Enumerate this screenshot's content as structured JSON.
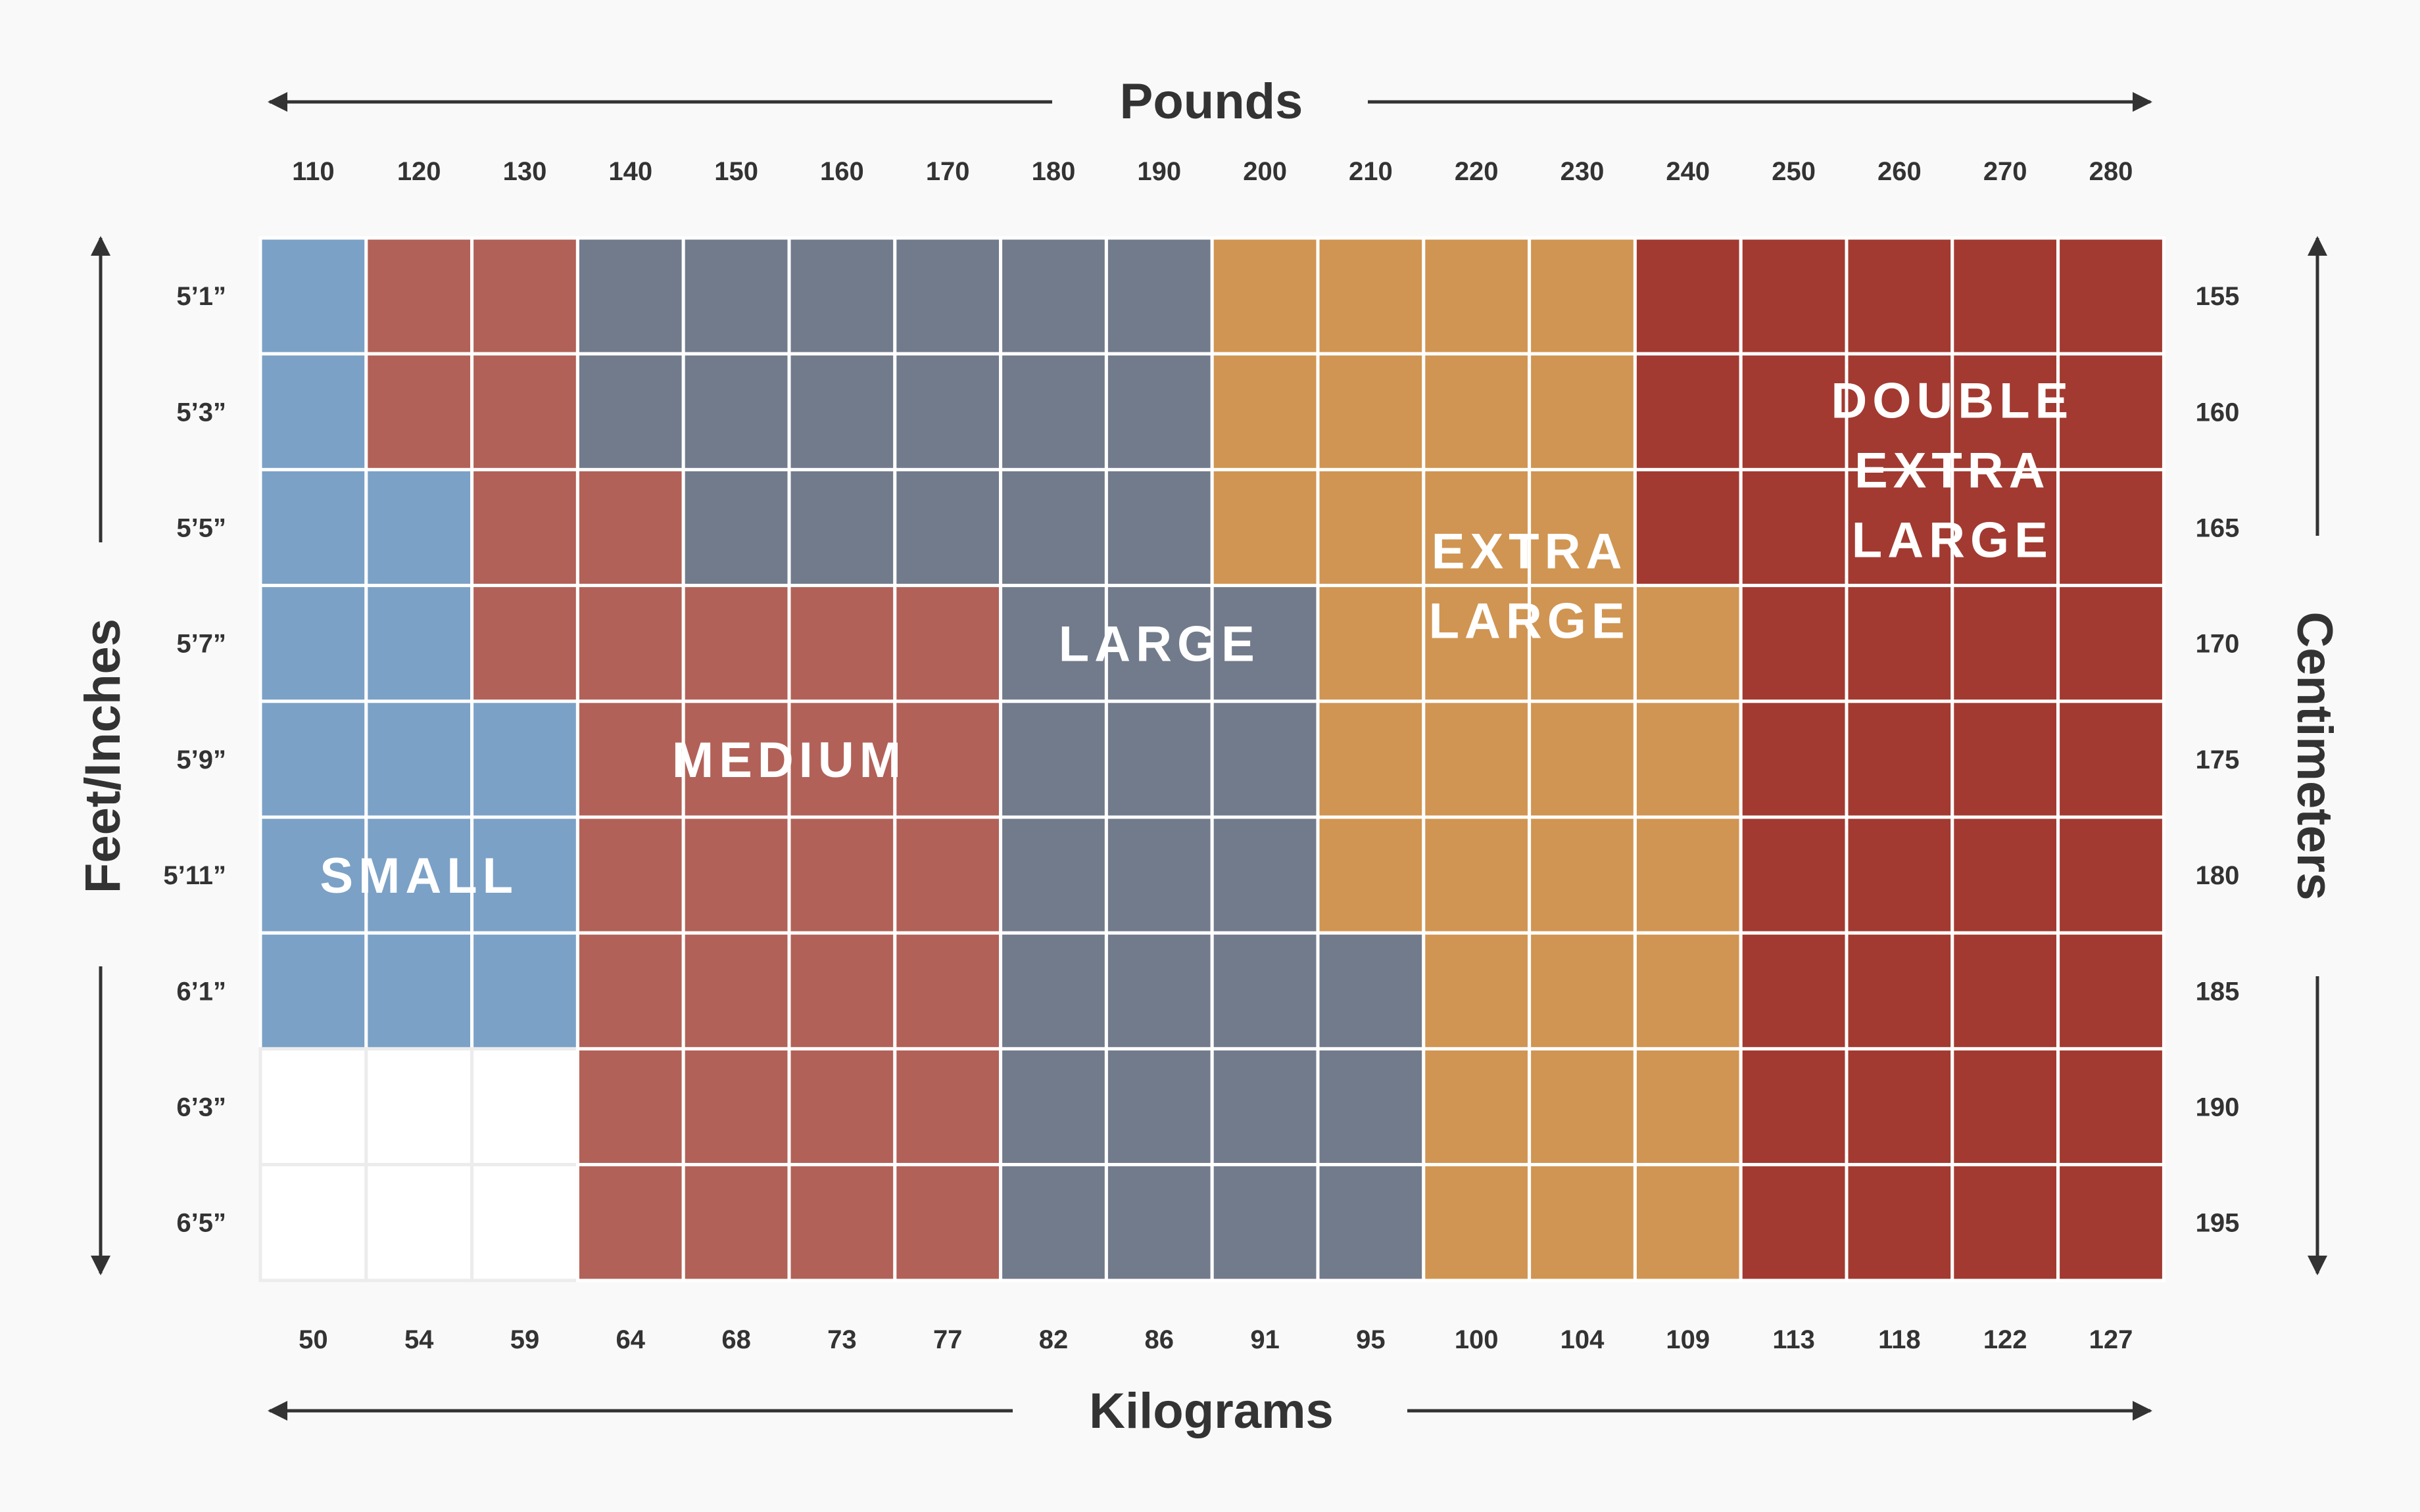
{
  "chart_data": {
    "type": "heatmap",
    "title": "",
    "x_top_label": "Pounds",
    "x_bottom_label": "Kilograms",
    "y_left_label": "Feet/Inches",
    "y_right_label": "Centimeters",
    "pounds": [
      "110",
      "120",
      "130",
      "140",
      "150",
      "160",
      "170",
      "180",
      "190",
      "200",
      "210",
      "220",
      "230",
      "240",
      "250",
      "260",
      "270",
      "280"
    ],
    "kilograms": [
      "50",
      "54",
      "59",
      "64",
      "68",
      "73",
      "77",
      "82",
      "86",
      "91",
      "95",
      "100",
      "104",
      "109",
      "113",
      "118",
      "122",
      "127"
    ],
    "heights_ft": [
      "5’1”",
      "5’3”",
      "5’5”",
      "5’7”",
      "5’9”",
      "5’11”",
      "6’1”",
      "6’3”",
      "6’5”"
    ],
    "heights_cm": [
      "155",
      "160",
      "165",
      "170",
      "175",
      "180",
      "185",
      "190",
      "195"
    ],
    "sizes": {
      "S": {
        "label": "SMALL",
        "color": "#7ba1c6"
      },
      "M": {
        "label": "MEDIUM",
        "color": "#b26158"
      },
      "L": {
        "label": "LARGE",
        "color": "#717b8b"
      },
      "XL": {
        "label": "EXTRA LARGE",
        "color": "#d09552"
      },
      "XXL": {
        "label": "DOUBLE EXTRA LARGE",
        "color": "#a23a31"
      },
      "N": {
        "label": "",
        "color": "#ffffff"
      }
    },
    "grid": [
      [
        "S",
        "M",
        "M",
        "L",
        "L",
        "L",
        "L",
        "L",
        "L",
        "XL",
        "XL",
        "XL",
        "XL",
        "XXL",
        "XXL",
        "XXL",
        "XXL",
        "XXL"
      ],
      [
        "S",
        "M",
        "M",
        "L",
        "L",
        "L",
        "L",
        "L",
        "L",
        "XL",
        "XL",
        "XL",
        "XL",
        "XXL",
        "XXL",
        "XXL",
        "XXL",
        "XXL"
      ],
      [
        "S",
        "S",
        "M",
        "M",
        "L",
        "L",
        "L",
        "L",
        "L",
        "XL",
        "XL",
        "XL",
        "XL",
        "XXL",
        "XXL",
        "XXL",
        "XXL",
        "XXL"
      ],
      [
        "S",
        "S",
        "M",
        "M",
        "M",
        "M",
        "M",
        "L",
        "L",
        "L",
        "XL",
        "XL",
        "XL",
        "XL",
        "XXL",
        "XXL",
        "XXL",
        "XXL"
      ],
      [
        "S",
        "S",
        "S",
        "M",
        "M",
        "M",
        "M",
        "L",
        "L",
        "L",
        "XL",
        "XL",
        "XL",
        "XL",
        "XXL",
        "XXL",
        "XXL",
        "XXL"
      ],
      [
        "S",
        "S",
        "S",
        "M",
        "M",
        "M",
        "M",
        "L",
        "L",
        "L",
        "XL",
        "XL",
        "XL",
        "XL",
        "XXL",
        "XXL",
        "XXL",
        "XXL"
      ],
      [
        "S",
        "S",
        "S",
        "M",
        "M",
        "M",
        "M",
        "L",
        "L",
        "L",
        "L",
        "XL",
        "XL",
        "XL",
        "XXL",
        "XXL",
        "XXL",
        "XXL"
      ],
      [
        "N",
        "N",
        "N",
        "M",
        "M",
        "M",
        "M",
        "L",
        "L",
        "L",
        "L",
        "XL",
        "XL",
        "XL",
        "XXL",
        "XXL",
        "XXL",
        "XXL"
      ],
      [
        "N",
        "N",
        "N",
        "M",
        "M",
        "M",
        "M",
        "L",
        "L",
        "L",
        "L",
        "XL",
        "XL",
        "XL",
        "XXL",
        "XXL",
        "XXL",
        "XXL"
      ]
    ],
    "region_labels": [
      {
        "lines": [
          "SMALL"
        ],
        "col": 1.5,
        "row": 5.5
      },
      {
        "lines": [
          "MEDIUM"
        ],
        "col": 5.0,
        "row": 4.5
      },
      {
        "lines": [
          "LARGE"
        ],
        "col": 8.5,
        "row": 3.5
      },
      {
        "lines": [
          "EXTRA",
          "LARGE"
        ],
        "col": 12.0,
        "row": 3.0
      },
      {
        "lines": [
          "DOUBLE",
          "EXTRA",
          "LARGE"
        ],
        "col": 16.0,
        "row": 2.0
      }
    ]
  }
}
